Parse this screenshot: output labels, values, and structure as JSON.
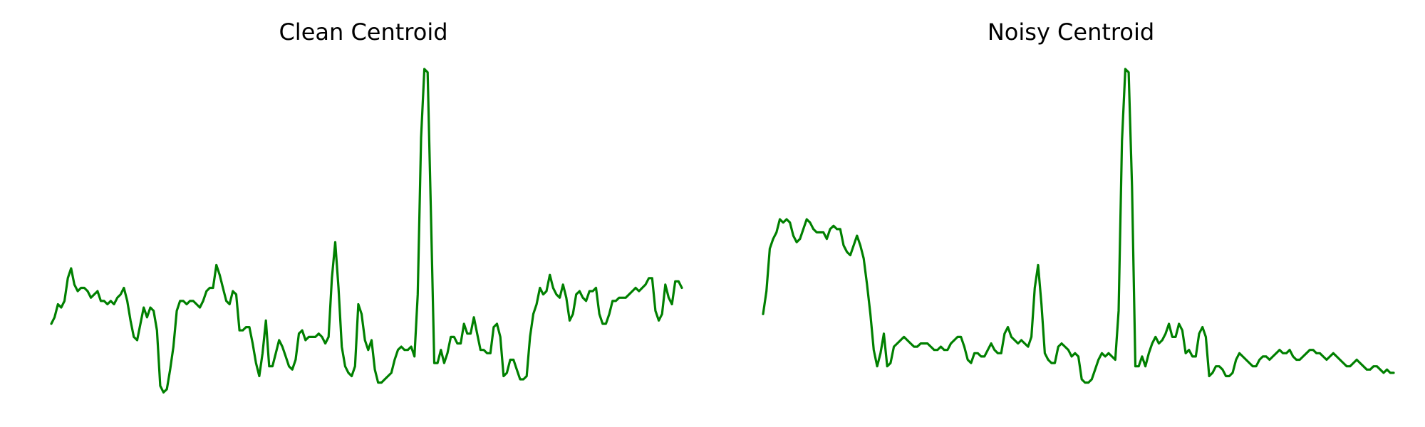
{
  "line_color": "#008000",
  "chart_data": [
    {
      "type": "line",
      "title": "Clean Centroid",
      "xlabel": "",
      "ylabel": "",
      "grid": false,
      "axes_visible": false,
      "series": [
        {
          "y": [
            0.22,
            0.24,
            0.28,
            0.27,
            0.29,
            0.36,
            0.39,
            0.34,
            0.32,
            0.33,
            0.33,
            0.32,
            0.3,
            0.31,
            0.32,
            0.29,
            0.29,
            0.28,
            0.29,
            0.28,
            0.3,
            0.31,
            0.33,
            0.29,
            0.23,
            0.18,
            0.17,
            0.22,
            0.27,
            0.24,
            0.27,
            0.26,
            0.2,
            0.03,
            0.01,
            0.02,
            0.08,
            0.15,
            0.26,
            0.29,
            0.29,
            0.28,
            0.29,
            0.29,
            0.28,
            0.27,
            0.29,
            0.32,
            0.33,
            0.33,
            0.4,
            0.37,
            0.33,
            0.29,
            0.28,
            0.32,
            0.31,
            0.2,
            0.2,
            0.21,
            0.21,
            0.16,
            0.1,
            0.06,
            0.13,
            0.23,
            0.09,
            0.09,
            0.13,
            0.17,
            0.15,
            0.12,
            0.09,
            0.08,
            0.11,
            0.19,
            0.2,
            0.17,
            0.18,
            0.18,
            0.18,
            0.19,
            0.18,
            0.16,
            0.18,
            0.36,
            0.47,
            0.33,
            0.15,
            0.09,
            0.07,
            0.06,
            0.09,
            0.28,
            0.25,
            0.17,
            0.14,
            0.17,
            0.08,
            0.04,
            0.04,
            0.05,
            0.06,
            0.07,
            0.11,
            0.14,
            0.15,
            0.14,
            0.14,
            0.15,
            0.12,
            0.31,
            0.79,
            1.0,
            0.99,
            0.55,
            0.1,
            0.1,
            0.14,
            0.1,
            0.13,
            0.18,
            0.18,
            0.16,
            0.16,
            0.22,
            0.19,
            0.19,
            0.24,
            0.19,
            0.14,
            0.14,
            0.13,
            0.13,
            0.21,
            0.22,
            0.18,
            0.06,
            0.07,
            0.11,
            0.11,
            0.08,
            0.05,
            0.05,
            0.06,
            0.18,
            0.25,
            0.28,
            0.33,
            0.31,
            0.32,
            0.37,
            0.33,
            0.31,
            0.3,
            0.34,
            0.3,
            0.23,
            0.25,
            0.31,
            0.32,
            0.3,
            0.29,
            0.32,
            0.32,
            0.33,
            0.25,
            0.22,
            0.22,
            0.25,
            0.29,
            0.29,
            0.3,
            0.3,
            0.3,
            0.31,
            0.32,
            0.33,
            0.32,
            0.33,
            0.34,
            0.36,
            0.36,
            0.26,
            0.23,
            0.25,
            0.34,
            0.3,
            0.28,
            0.35,
            0.35,
            0.33
          ]
        }
      ]
    },
    {
      "type": "line",
      "title": "Noisy Centroid",
      "xlabel": "",
      "ylabel": "",
      "grid": false,
      "axes_visible": false,
      "series": [
        {
          "y": [
            0.25,
            0.32,
            0.45,
            0.48,
            0.5,
            0.54,
            0.53,
            0.54,
            0.53,
            0.49,
            0.47,
            0.48,
            0.51,
            0.54,
            0.53,
            0.51,
            0.5,
            0.5,
            0.5,
            0.48,
            0.51,
            0.52,
            0.51,
            0.51,
            0.46,
            0.44,
            0.43,
            0.46,
            0.49,
            0.46,
            0.42,
            0.34,
            0.25,
            0.14,
            0.09,
            0.13,
            0.19,
            0.09,
            0.1,
            0.15,
            0.16,
            0.17,
            0.18,
            0.17,
            0.16,
            0.15,
            0.15,
            0.16,
            0.16,
            0.16,
            0.15,
            0.14,
            0.14,
            0.15,
            0.14,
            0.14,
            0.16,
            0.17,
            0.18,
            0.18,
            0.15,
            0.11,
            0.1,
            0.13,
            0.13,
            0.12,
            0.12,
            0.14,
            0.16,
            0.14,
            0.13,
            0.13,
            0.19,
            0.21,
            0.18,
            0.17,
            0.16,
            0.17,
            0.16,
            0.15,
            0.18,
            0.33,
            0.4,
            0.28,
            0.13,
            0.11,
            0.1,
            0.1,
            0.15,
            0.16,
            0.15,
            0.14,
            0.12,
            0.13,
            0.12,
            0.05,
            0.04,
            0.04,
            0.05,
            0.08,
            0.11,
            0.13,
            0.12,
            0.13,
            0.12,
            0.11,
            0.26,
            0.78,
            1.0,
            0.99,
            0.64,
            0.09,
            0.09,
            0.12,
            0.09,
            0.13,
            0.16,
            0.18,
            0.16,
            0.17,
            0.19,
            0.22,
            0.18,
            0.18,
            0.22,
            0.2,
            0.13,
            0.14,
            0.12,
            0.12,
            0.19,
            0.21,
            0.18,
            0.06,
            0.07,
            0.09,
            0.09,
            0.08,
            0.06,
            0.06,
            0.07,
            0.11,
            0.13,
            0.12,
            0.11,
            0.1,
            0.09,
            0.09,
            0.11,
            0.12,
            0.12,
            0.11,
            0.12,
            0.13,
            0.14,
            0.13,
            0.13,
            0.14,
            0.12,
            0.11,
            0.11,
            0.12,
            0.13,
            0.14,
            0.14,
            0.13,
            0.13,
            0.12,
            0.11,
            0.12,
            0.13,
            0.12,
            0.11,
            0.1,
            0.09,
            0.09,
            0.1,
            0.11,
            0.1,
            0.09,
            0.08,
            0.08,
            0.09,
            0.09,
            0.08,
            0.07,
            0.08,
            0.07,
            0.07
          ]
        }
      ]
    }
  ]
}
